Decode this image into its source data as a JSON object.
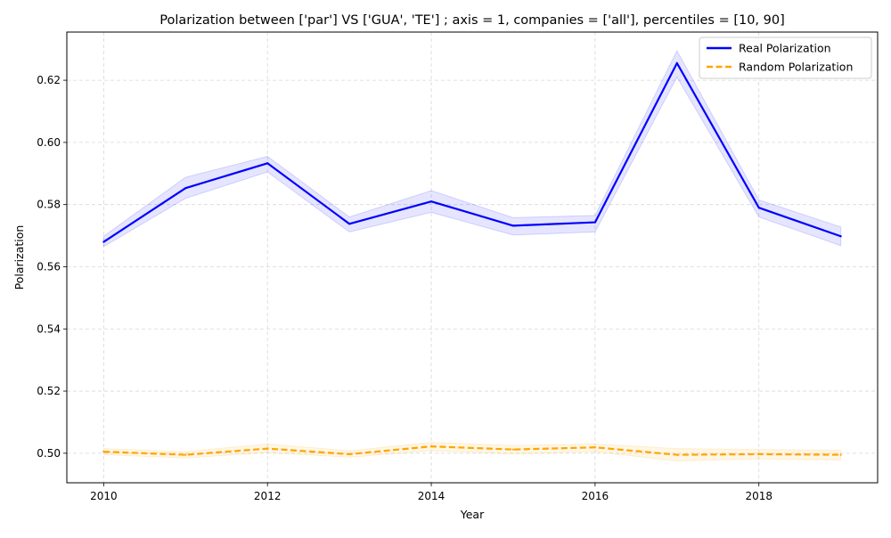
{
  "chart_data": {
    "type": "line",
    "title": "Polarization between ['par'] VS ['GUA', 'TE'] ; axis = 1, companies = ['all'], percentiles = [10, 90]",
    "xlabel": "Year",
    "ylabel": "Polarization",
    "x": [
      2010,
      2011,
      2012,
      2013,
      2014,
      2015,
      2016,
      2017,
      2018,
      2019
    ],
    "xlim": [
      2009.55,
      2019.45
    ],
    "ylim": [
      0.4905,
      0.6355
    ],
    "xticks": [
      2010,
      2012,
      2014,
      2016,
      2018
    ],
    "xtick_labels": [
      "2010",
      "2012",
      "2014",
      "2016",
      "2018"
    ],
    "yticks": [
      0.5,
      0.52,
      0.54,
      0.56,
      0.58,
      0.6,
      0.62
    ],
    "ytick_labels": [
      "0.50",
      "0.52",
      "0.54",
      "0.56",
      "0.58",
      "0.60",
      "0.62"
    ],
    "grid": true,
    "legend_position": "top-right",
    "series": [
      {
        "name": "Real Polarization",
        "color": "#0000ff",
        "band_color": "#0000ff",
        "dash": "solid",
        "values": [
          0.568,
          0.5853,
          0.5933,
          0.5738,
          0.581,
          0.5732,
          0.5743,
          0.6255,
          0.579,
          0.5698
        ],
        "upper": [
          0.5698,
          0.5888,
          0.5955,
          0.576,
          0.5845,
          0.5758,
          0.5765,
          0.6295,
          0.5815,
          0.5728
        ],
        "lower": [
          0.5665,
          0.582,
          0.5905,
          0.5712,
          0.5775,
          0.5702,
          0.5712,
          0.621,
          0.576,
          0.5668
        ]
      },
      {
        "name": "Random Polarization",
        "color": "#ffa500",
        "band_color": "#ffa500",
        "dash": "dashed",
        "values": [
          0.5005,
          0.4995,
          0.5015,
          0.4997,
          0.5022,
          0.5012,
          0.5019,
          0.4995,
          0.4997,
          0.4995
        ],
        "upper": [
          0.5015,
          0.5005,
          0.503,
          0.5008,
          0.5035,
          0.5025,
          0.503,
          0.5015,
          0.5012,
          0.501
        ],
        "lower": [
          0.4995,
          0.4985,
          0.5002,
          0.4987,
          0.5008,
          0.4998,
          0.5005,
          0.4975,
          0.4982,
          0.4978
        ]
      }
    ]
  }
}
